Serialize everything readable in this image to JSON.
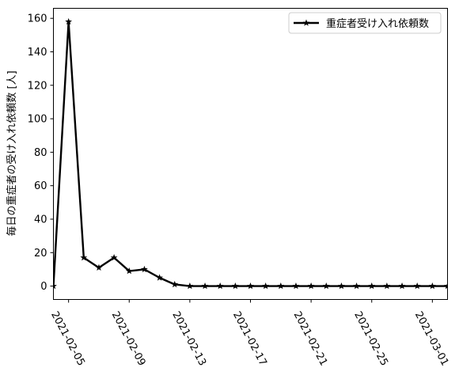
{
  "chart_data": {
    "type": "line",
    "ylabel": "毎日の重症者の受け入れ依頼数 [人]",
    "xlabel": "",
    "ylim": [
      -8,
      166
    ],
    "xlim": [
      "2021-02-04",
      "2021-03-02"
    ],
    "y_ticks": [
      0,
      20,
      40,
      60,
      80,
      100,
      120,
      140,
      160
    ],
    "x_ticks": [
      "2021-02-05",
      "2021-02-09",
      "2021-02-13",
      "2021-02-17",
      "2021-02-21",
      "2021-02-25",
      "2021-03-01"
    ],
    "grid": false,
    "legend_position": "top-right",
    "series": [
      {
        "name": "重症者受け入れ依頼数",
        "color": "#000000",
        "marker": "star",
        "x": [
          "2021-02-04",
          "2021-02-05",
          "2021-02-06",
          "2021-02-07",
          "2021-02-08",
          "2021-02-09",
          "2021-02-10",
          "2021-02-11",
          "2021-02-12",
          "2021-02-13",
          "2021-02-14",
          "2021-02-15",
          "2021-02-16",
          "2021-02-17",
          "2021-02-18",
          "2021-02-19",
          "2021-02-20",
          "2021-02-21",
          "2021-02-22",
          "2021-02-23",
          "2021-02-24",
          "2021-02-25",
          "2021-02-26",
          "2021-02-27",
          "2021-02-28",
          "2021-03-01",
          "2021-03-02"
        ],
        "values": [
          0,
          158,
          17,
          11,
          17,
          9,
          10,
          5,
          1,
          0,
          0,
          0,
          0,
          0,
          0,
          0,
          0,
          0,
          0,
          0,
          0,
          0,
          0,
          0,
          0,
          0,
          0
        ]
      }
    ]
  }
}
